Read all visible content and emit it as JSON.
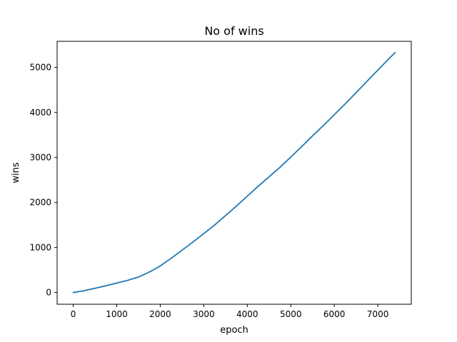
{
  "chart_data": {
    "type": "line",
    "title": "No of wins",
    "xlabel": "epoch",
    "ylabel": "wins",
    "xlim": [
      -370,
      7770
    ],
    "ylim": [
      -260,
      5580
    ],
    "xticks": [
      0,
      1000,
      2000,
      3000,
      4000,
      5000,
      6000,
      7000
    ],
    "yticks": [
      0,
      1000,
      2000,
      3000,
      4000,
      5000
    ],
    "grid": false,
    "legend": "none",
    "series": [
      {
        "color": "#1f77b4",
        "x": [
          0,
          250,
          500,
          750,
          1000,
          1250,
          1500,
          1650,
          1800,
          2000,
          2250,
          2500,
          2750,
          3000,
          3250,
          3500,
          3750,
          4000,
          4250,
          4500,
          4750,
          5000,
          5250,
          5500,
          5750,
          6000,
          6250,
          6500,
          6750,
          7000,
          7250,
          7400
        ],
        "y": [
          0,
          40,
          95,
          150,
          210,
          270,
          345,
          410,
          480,
          590,
          760,
          940,
          1120,
          1310,
          1500,
          1710,
          1920,
          2140,
          2360,
          2570,
          2780,
          3010,
          3240,
          3480,
          3710,
          3950,
          4190,
          4440,
          4690,
          4940,
          5190,
          5330
        ]
      }
    ]
  }
}
